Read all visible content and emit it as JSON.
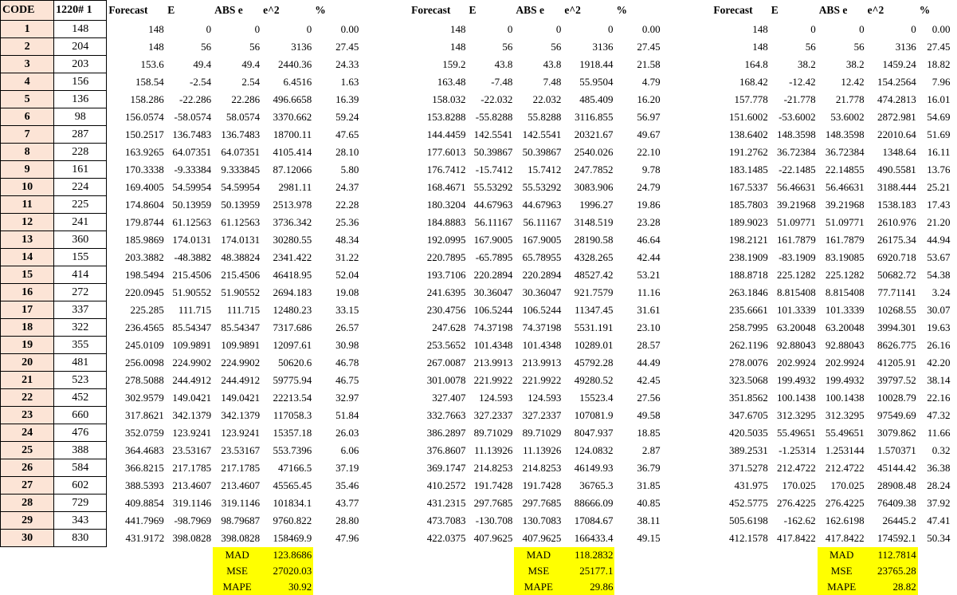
{
  "headers": {
    "code": "CODE",
    "value": "1220# 1",
    "blocks": [
      [
        "Forecast",
        "E",
        "ABS e",
        "e^2",
        "%"
      ],
      [
        "Forecast",
        "E",
        "ABS e",
        "e^2",
        "%"
      ],
      [
        "Forecast",
        "E",
        "ABS e",
        "e^2",
        "%"
      ]
    ]
  },
  "rows": [
    {
      "code": "1",
      "value": "148",
      "blocks": [
        [
          "148",
          "0",
          "0",
          "0",
          "0.00"
        ],
        [
          "148",
          "0",
          "0",
          "0",
          "0.00"
        ],
        [
          "148",
          "0",
          "0",
          "0",
          "0.00"
        ]
      ]
    },
    {
      "code": "2",
      "value": "204",
      "blocks": [
        [
          "148",
          "56",
          "56",
          "3136",
          "27.45"
        ],
        [
          "148",
          "56",
          "56",
          "3136",
          "27.45"
        ],
        [
          "148",
          "56",
          "56",
          "3136",
          "27.45"
        ]
      ]
    },
    {
      "code": "3",
      "value": "203",
      "blocks": [
        [
          "153.6",
          "49.4",
          "49.4",
          "2440.36",
          "24.33"
        ],
        [
          "159.2",
          "43.8",
          "43.8",
          "1918.44",
          "21.58"
        ],
        [
          "164.8",
          "38.2",
          "38.2",
          "1459.24",
          "18.82"
        ]
      ]
    },
    {
      "code": "4",
      "value": "156",
      "blocks": [
        [
          "158.54",
          "-2.54",
          "2.54",
          "6.4516",
          "1.63"
        ],
        [
          "163.48",
          "-7.48",
          "7.48",
          "55.9504",
          "4.79"
        ],
        [
          "168.42",
          "-12.42",
          "12.42",
          "154.2564",
          "7.96"
        ]
      ]
    },
    {
      "code": "5",
      "value": "136",
      "blocks": [
        [
          "158.286",
          "-22.286",
          "22.286",
          "496.6658",
          "16.39"
        ],
        [
          "158.032",
          "-22.032",
          "22.032",
          "485.409",
          "16.20"
        ],
        [
          "157.778",
          "-21.778",
          "21.778",
          "474.2813",
          "16.01"
        ]
      ]
    },
    {
      "code": "6",
      "value": "98",
      "blocks": [
        [
          "156.0574",
          "-58.0574",
          "58.0574",
          "3370.662",
          "59.24"
        ],
        [
          "153.8288",
          "-55.8288",
          "55.8288",
          "3116.855",
          "56.97"
        ],
        [
          "151.6002",
          "-53.6002",
          "53.6002",
          "2872.981",
          "54.69"
        ]
      ]
    },
    {
      "code": "7",
      "value": "287",
      "blocks": [
        [
          "150.2517",
          "136.7483",
          "136.7483",
          "18700.11",
          "47.65"
        ],
        [
          "144.4459",
          "142.5541",
          "142.5541",
          "20321.67",
          "49.67"
        ],
        [
          "138.6402",
          "148.3598",
          "148.3598",
          "22010.64",
          "51.69"
        ]
      ]
    },
    {
      "code": "8",
      "value": "228",
      "blocks": [
        [
          "163.9265",
          "64.07351",
          "64.07351",
          "4105.414",
          "28.10"
        ],
        [
          "177.6013",
          "50.39867",
          "50.39867",
          "2540.026",
          "22.10"
        ],
        [
          "191.2762",
          "36.72384",
          "36.72384",
          "1348.64",
          "16.11"
        ]
      ]
    },
    {
      "code": "9",
      "value": "161",
      "blocks": [
        [
          "170.3338",
          "-9.33384",
          "9.333845",
          "87.12066",
          "5.80"
        ],
        [
          "176.7412",
          "-15.7412",
          "15.7412",
          "247.7852",
          "9.78"
        ],
        [
          "183.1485",
          "-22.1485",
          "22.14855",
          "490.5581",
          "13.76"
        ]
      ]
    },
    {
      "code": "10",
      "value": "224",
      "blocks": [
        [
          "169.4005",
          "54.59954",
          "54.59954",
          "2981.11",
          "24.37"
        ],
        [
          "168.4671",
          "55.53292",
          "55.53292",
          "3083.906",
          "24.79"
        ],
        [
          "167.5337",
          "56.46631",
          "56.46631",
          "3188.444",
          "25.21"
        ]
      ]
    },
    {
      "code": "11",
      "value": "225",
      "blocks": [
        [
          "174.8604",
          "50.13959",
          "50.13959",
          "2513.978",
          "22.28"
        ],
        [
          "180.3204",
          "44.67963",
          "44.67963",
          "1996.27",
          "19.86"
        ],
        [
          "185.7803",
          "39.21968",
          "39.21968",
          "1538.183",
          "17.43"
        ]
      ]
    },
    {
      "code": "12",
      "value": "241",
      "blocks": [
        [
          "179.8744",
          "61.12563",
          "61.12563",
          "3736.342",
          "25.36"
        ],
        [
          "184.8883",
          "56.11167",
          "56.11167",
          "3148.519",
          "23.28"
        ],
        [
          "189.9023",
          "51.09771",
          "51.09771",
          "2610.976",
          "21.20"
        ]
      ]
    },
    {
      "code": "13",
      "value": "360",
      "blocks": [
        [
          "185.9869",
          "174.0131",
          "174.0131",
          "30280.55",
          "48.34"
        ],
        [
          "192.0995",
          "167.9005",
          "167.9005",
          "28190.58",
          "46.64"
        ],
        [
          "198.2121",
          "161.7879",
          "161.7879",
          "26175.34",
          "44.94"
        ]
      ]
    },
    {
      "code": "14",
      "value": "155",
      "blocks": [
        [
          "203.3882",
          "-48.3882",
          "48.38824",
          "2341.422",
          "31.22"
        ],
        [
          "220.7895",
          "-65.7895",
          "65.78955",
          "4328.265",
          "42.44"
        ],
        [
          "238.1909",
          "-83.1909",
          "83.19085",
          "6920.718",
          "53.67"
        ]
      ]
    },
    {
      "code": "15",
      "value": "414",
      "blocks": [
        [
          "198.5494",
          "215.4506",
          "215.4506",
          "46418.95",
          "52.04"
        ],
        [
          "193.7106",
          "220.2894",
          "220.2894",
          "48527.42",
          "53.21"
        ],
        [
          "188.8718",
          "225.1282",
          "225.1282",
          "50682.72",
          "54.38"
        ]
      ]
    },
    {
      "code": "16",
      "value": "272",
      "blocks": [
        [
          "220.0945",
          "51.90552",
          "51.90552",
          "2694.183",
          "19.08"
        ],
        [
          "241.6395",
          "30.36047",
          "30.36047",
          "921.7579",
          "11.16"
        ],
        [
          "263.1846",
          "8.815408",
          "8.815408",
          "77.71141",
          "3.24"
        ]
      ]
    },
    {
      "code": "17",
      "value": "337",
      "blocks": [
        [
          "225.285",
          "111.715",
          "111.715",
          "12480.23",
          "33.15"
        ],
        [
          "230.4756",
          "106.5244",
          "106.5244",
          "11347.45",
          "31.61"
        ],
        [
          "235.6661",
          "101.3339",
          "101.3339",
          "10268.55",
          "30.07"
        ]
      ]
    },
    {
      "code": "18",
      "value": "322",
      "blocks": [
        [
          "236.4565",
          "85.54347",
          "85.54347",
          "7317.686",
          "26.57"
        ],
        [
          "247.628",
          "74.37198",
          "74.37198",
          "5531.191",
          "23.10"
        ],
        [
          "258.7995",
          "63.20048",
          "63.20048",
          "3994.301",
          "19.63"
        ]
      ]
    },
    {
      "code": "19",
      "value": "355",
      "blocks": [
        [
          "245.0109",
          "109.9891",
          "109.9891",
          "12097.61",
          "30.98"
        ],
        [
          "253.5652",
          "101.4348",
          "101.4348",
          "10289.01",
          "28.57"
        ],
        [
          "262.1196",
          "92.88043",
          "92.88043",
          "8626.775",
          "26.16"
        ]
      ]
    },
    {
      "code": "20",
      "value": "481",
      "blocks": [
        [
          "256.0098",
          "224.9902",
          "224.9902",
          "50620.6",
          "46.78"
        ],
        [
          "267.0087",
          "213.9913",
          "213.9913",
          "45792.28",
          "44.49"
        ],
        [
          "278.0076",
          "202.9924",
          "202.9924",
          "41205.91",
          "42.20"
        ]
      ]
    },
    {
      "code": "21",
      "value": "523",
      "blocks": [
        [
          "278.5088",
          "244.4912",
          "244.4912",
          "59775.94",
          "46.75"
        ],
        [
          "301.0078",
          "221.9922",
          "221.9922",
          "49280.52",
          "42.45"
        ],
        [
          "323.5068",
          "199.4932",
          "199.4932",
          "39797.52",
          "38.14"
        ]
      ]
    },
    {
      "code": "22",
      "value": "452",
      "blocks": [
        [
          "302.9579",
          "149.0421",
          "149.0421",
          "22213.54",
          "32.97"
        ],
        [
          "327.407",
          "124.593",
          "124.593",
          "15523.4",
          "27.56"
        ],
        [
          "351.8562",
          "100.1438",
          "100.1438",
          "10028.79",
          "22.16"
        ]
      ]
    },
    {
      "code": "23",
      "value": "660",
      "blocks": [
        [
          "317.8621",
          "342.1379",
          "342.1379",
          "117058.3",
          "51.84"
        ],
        [
          "332.7663",
          "327.2337",
          "327.2337",
          "107081.9",
          "49.58"
        ],
        [
          "347.6705",
          "312.3295",
          "312.3295",
          "97549.69",
          "47.32"
        ]
      ]
    },
    {
      "code": "24",
      "value": "476",
      "blocks": [
        [
          "352.0759",
          "123.9241",
          "123.9241",
          "15357.18",
          "26.03"
        ],
        [
          "386.2897",
          "89.71029",
          "89.71029",
          "8047.937",
          "18.85"
        ],
        [
          "420.5035",
          "55.49651",
          "55.49651",
          "3079.862",
          "11.66"
        ]
      ]
    },
    {
      "code": "25",
      "value": "388",
      "blocks": [
        [
          "364.4683",
          "23.53167",
          "23.53167",
          "553.7396",
          "6.06"
        ],
        [
          "376.8607",
          "11.13926",
          "11.13926",
          "124.0832",
          "2.87"
        ],
        [
          "389.2531",
          "-1.25314",
          "1.253144",
          "1.570371",
          "0.32"
        ]
      ]
    },
    {
      "code": "26",
      "value": "584",
      "blocks": [
        [
          "366.8215",
          "217.1785",
          "217.1785",
          "47166.5",
          "37.19"
        ],
        [
          "369.1747",
          "214.8253",
          "214.8253",
          "46149.93",
          "36.79"
        ],
        [
          "371.5278",
          "212.4722",
          "212.4722",
          "45144.42",
          "36.38"
        ]
      ]
    },
    {
      "code": "27",
      "value": "602",
      "blocks": [
        [
          "388.5393",
          "213.4607",
          "213.4607",
          "45565.45",
          "35.46"
        ],
        [
          "410.2572",
          "191.7428",
          "191.7428",
          "36765.3",
          "31.85"
        ],
        [
          "431.975",
          "170.025",
          "170.025",
          "28908.48",
          "28.24"
        ]
      ]
    },
    {
      "code": "28",
      "value": "729",
      "blocks": [
        [
          "409.8854",
          "319.1146",
          "319.1146",
          "101834.1",
          "43.77"
        ],
        [
          "431.2315",
          "297.7685",
          "297.7685",
          "88666.09",
          "40.85"
        ],
        [
          "452.5775",
          "276.4225",
          "276.4225",
          "76409.38",
          "37.92"
        ]
      ]
    },
    {
      "code": "29",
      "value": "343",
      "blocks": [
        [
          "441.7969",
          "-98.7969",
          "98.79687",
          "9760.822",
          "28.80"
        ],
        [
          "473.7083",
          "-130.708",
          "130.7083",
          "17084.67",
          "38.11"
        ],
        [
          "505.6198",
          "-162.62",
          "162.6198",
          "26445.2",
          "47.41"
        ]
      ]
    },
    {
      "code": "30",
      "value": "830",
      "blocks": [
        [
          "431.9172",
          "398.0828",
          "398.0828",
          "158469.9",
          "47.96"
        ],
        [
          "422.0375",
          "407.9625",
          "407.9625",
          "166433.4",
          "49.15"
        ],
        [
          "412.1578",
          "417.8422",
          "417.8422",
          "174592.1",
          "50.34"
        ]
      ]
    }
  ],
  "summary": [
    {
      "mad_label": "MAD",
      "mad": "123.8686",
      "mse_label": "MSE",
      "mse": "27020.03",
      "mape_label": "MAPE",
      "mape": "30.92"
    },
    {
      "mad_label": "MAD",
      "mad": "118.2832",
      "mse_label": "MSE",
      "mse": "25177.1",
      "mape_label": "MAPE",
      "mape": "29.86"
    },
    {
      "mad_label": "MAD",
      "mad": "112.7814",
      "mse_label": "MSE",
      "mse": "23765.28",
      "mape_label": "MAPE",
      "mape": "28.82"
    }
  ],
  "colors": {
    "code_fill": "#fce4d6",
    "summary_fill": "#ffff00"
  }
}
